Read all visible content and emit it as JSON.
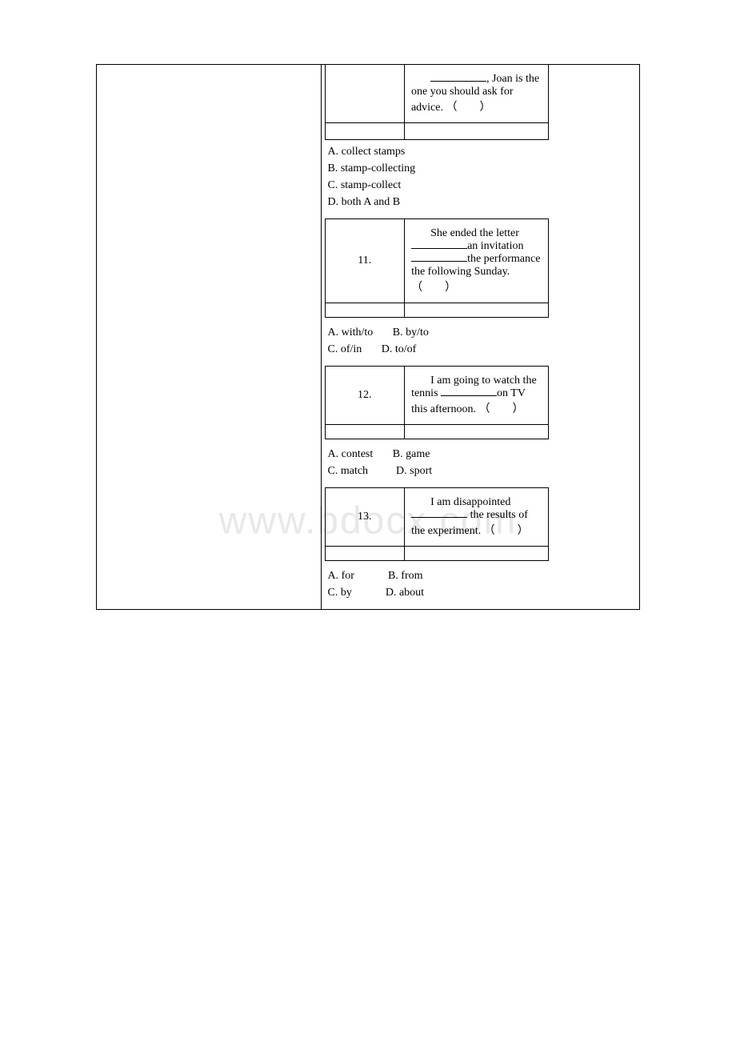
{
  "watermark": "www.bdocx.com",
  "q10_partial": {
    "text_end": ", Joan is the one you should ask for advice. （　　）",
    "options": {
      "a": "A. collect stamps",
      "b": "B. stamp-collecting",
      "c": "C. stamp-collect",
      "d": "D. both A and B"
    }
  },
  "q11": {
    "number": "11.",
    "text_parts": {
      "start": "She ended the letter ",
      "mid1": "an invitation ",
      "mid2": "the performance the following Sunday. （　　）"
    },
    "options": {
      "a": "A. with/to",
      "b": "B. by/to",
      "c": "C. of/in",
      "d": "D. to/of"
    }
  },
  "q12": {
    "number": "12.",
    "text_parts": {
      "start": "I am going to watch the tennis ",
      "end": "on TV this afternoon. （　　）"
    },
    "options": {
      "a": "A. contest",
      "b": "B. game",
      "c": "C. match",
      "d": "D. sport"
    }
  },
  "q13": {
    "number": "13.",
    "text_parts": {
      "start": "I am disappointed ",
      "end": " the results of the experiment. （　　）"
    },
    "options": {
      "a": "A. for",
      "b": "B. from",
      "c": "C. by",
      "d": "D. about"
    }
  }
}
